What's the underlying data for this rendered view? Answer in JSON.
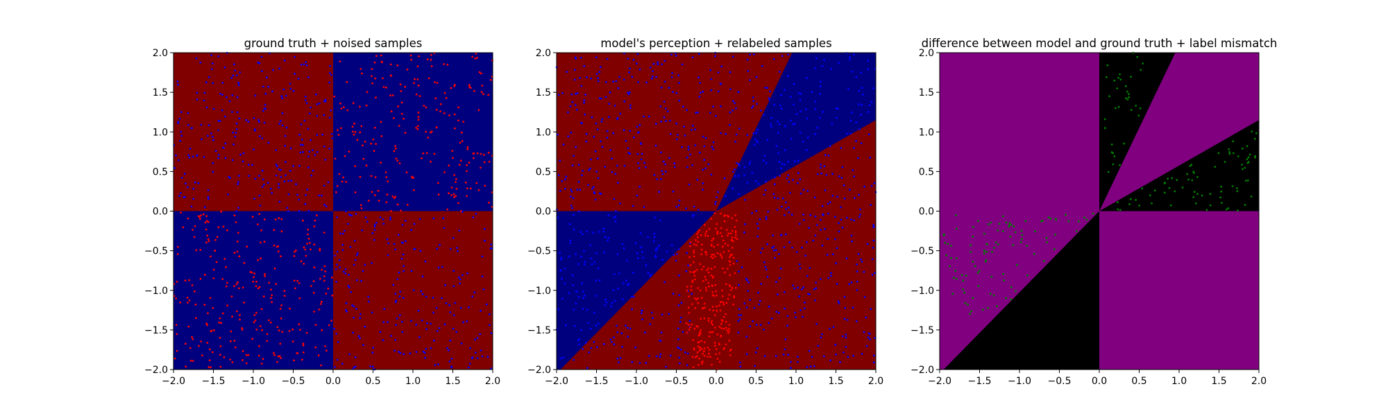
{
  "colors": {
    "red": "#800000",
    "blue": "#00007f",
    "purple": "#800080",
    "black": "#000000",
    "sample_red": "#ff0000",
    "sample_blue": "#0000ff",
    "sample_green": "#008000"
  },
  "chart_data": [
    {
      "type": "scatter",
      "title": "ground truth + noised samples",
      "xlim": [
        -2.0,
        2.0
      ],
      "ylim": [
        -2.0,
        2.0
      ],
      "x_ticks": [
        "−2.0",
        "−1.5",
        "−1.0",
        "−0.5",
        "0.0",
        "0.5",
        "1.0",
        "1.5",
        "2.0"
      ],
      "y_ticks": [
        "−2.0",
        "−1.5",
        "−1.0",
        "−0.5",
        "0.0",
        "0.5",
        "1.0",
        "1.5",
        "2.0"
      ],
      "grid": false,
      "background": "ground truth regions: x*y > 0 blue, x*y < 0 red",
      "samples": "≈1000 points uniform in [-2,2]², colored opposite to region (mostly red in blue quadrants, blue in red quadrants)"
    },
    {
      "type": "scatter",
      "title": "model's perception + relabeled samples",
      "xlim": [
        -2.0,
        2.0
      ],
      "ylim": [
        -2.0,
        2.0
      ],
      "x_ticks": [
        "−2.0",
        "−1.5",
        "−1.0",
        "−0.5",
        "0.0",
        "0.5",
        "1.0",
        "1.5",
        "2.0"
      ],
      "y_ticks": [
        "−2.0",
        "−1.5",
        "−1.0",
        "−0.5",
        "0.0",
        "0.5",
        "1.0",
        "1.5",
        "2.0"
      ],
      "grid": false,
      "background": "blue wedges: lines through origin at angles ~26.5° and ~64.5° (upper right) and ~45°..180° (lower left); rest red",
      "samples": "≈1000 points; red points concentrated in wedge near x≈-0.2..0.2 below origin, blue elsewhere"
    },
    {
      "type": "scatter",
      "title": "difference between model and ground truth + label mismatch",
      "xlim": [
        -2.0,
        2.0
      ],
      "ylim": [
        -2.0,
        2.0
      ],
      "x_ticks": [
        "−2.0",
        "−1.5",
        "−1.0",
        "−0.5",
        "0.0",
        "0.5",
        "1.0",
        "1.5",
        "2.0"
      ],
      "y_ticks": [
        "−2.0",
        "−1.5",
        "−1.0",
        "−0.5",
        "0.0",
        "0.5",
        "1.0",
        "1.5",
        "2.0"
      ],
      "grid": false,
      "background": "purple where model agrees with ground truth, black where it differs",
      "samples": "green points where label mismatch occurs"
    }
  ]
}
